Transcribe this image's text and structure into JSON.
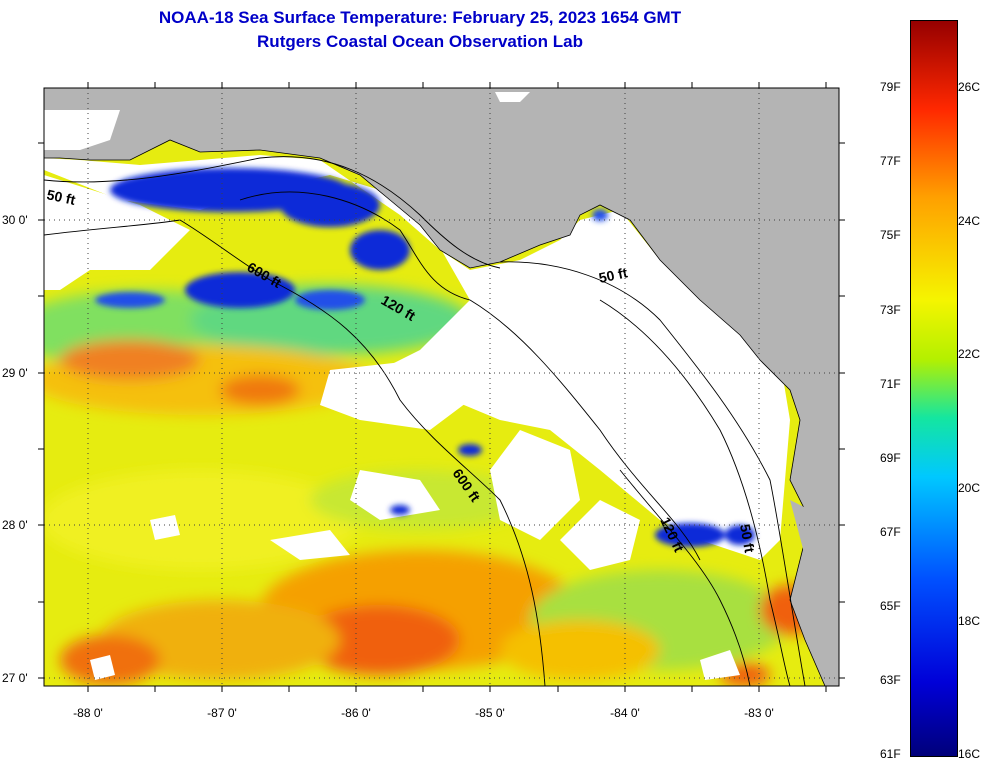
{
  "title": {
    "line1": "NOAA-18 Sea Surface Temperature:  February 25, 2023 1654 GMT",
    "line2": "Rutgers Coastal Ocean Observation Lab"
  },
  "lat_labels": [
    "30 0'",
    "29 0'",
    "28 0'",
    "27 0'"
  ],
  "lon_labels": [
    "-88 0'",
    "-87 0'",
    "-86 0'",
    "-85 0'",
    "-84 0'",
    "-83 0'"
  ],
  "contour_labels": [
    "50 ft",
    "600 ft",
    "120 ft",
    "50 ft",
    "600 ft",
    "120 ft",
    "50 ft"
  ],
  "colorbar": {
    "fahrenheit": [
      "79F",
      "77F",
      "75F",
      "73F",
      "71F",
      "69F",
      "67F",
      "65F",
      "63F",
      "61F"
    ],
    "celsius": [
      "26C",
      "24C",
      "22C",
      "20C",
      "18C",
      "16C"
    ],
    "min_c": 16,
    "max_c": 27
  },
  "colors": {
    "title": "#0000c8",
    "land": "#b4b4b4",
    "cloud": "#ffffff"
  }
}
